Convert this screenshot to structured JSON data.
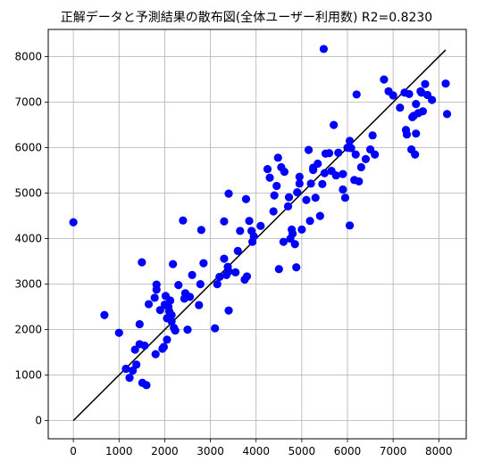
{
  "chart_data": {
    "type": "scatter",
    "title": "正解データと予測結果の散布図(全体ユーザー利用数)  R2=0.8230",
    "xlim": [
      -550,
      8600
    ],
    "ylim": [
      -400,
      8600
    ],
    "xticks": [
      0,
      1000,
      2000,
      3000,
      4000,
      5000,
      6000,
      7000,
      8000
    ],
    "yticks": [
      0,
      1000,
      2000,
      3000,
      4000,
      5000,
      6000,
      7000,
      8000
    ],
    "grid": true,
    "colors": {
      "points": "#0000ff",
      "line": "#000000",
      "grid": "#b0b0b0"
    },
    "reference_line": {
      "x": [
        0,
        8150
      ],
      "y": [
        0,
        8150
      ]
    },
    "points": [
      [
        0,
        4360
      ],
      [
        680,
        2320
      ],
      [
        1000,
        1930
      ],
      [
        1150,
        1140
      ],
      [
        1230,
        940
      ],
      [
        1300,
        1100
      ],
      [
        1350,
        1560
      ],
      [
        1380,
        1230
      ],
      [
        1450,
        2120
      ],
      [
        1450,
        1680
      ],
      [
        1500,
        3480
      ],
      [
        1510,
        830
      ],
      [
        1560,
        1650
      ],
      [
        1600,
        780
      ],
      [
        1650,
        2560
      ],
      [
        1780,
        2700
      ],
      [
        1800,
        1460
      ],
      [
        1820,
        2880
      ],
      [
        1820,
        2990
      ],
      [
        1900,
        2430
      ],
      [
        1950,
        1580
      ],
      [
        1980,
        1620
      ],
      [
        2000,
        2550
      ],
      [
        2020,
        2740
      ],
      [
        2050,
        2250
      ],
      [
        2050,
        1780
      ],
      [
        2080,
        2500
      ],
      [
        2100,
        2400
      ],
      [
        2120,
        2640
      ],
      [
        2150,
        2320
      ],
      [
        2150,
        2180
      ],
      [
        2180,
        3440
      ],
      [
        2200,
        2040
      ],
      [
        2230,
        1980
      ],
      [
        2300,
        2980
      ],
      [
        2400,
        4400
      ],
      [
        2430,
        2680
      ],
      [
        2450,
        2800
      ],
      [
        2500,
        2000
      ],
      [
        2550,
        2720
      ],
      [
        2600,
        3200
      ],
      [
        2750,
        2540
      ],
      [
        2780,
        3000
      ],
      [
        2800,
        4190
      ],
      [
        2850,
        3460
      ],
      [
        3100,
        2030
      ],
      [
        3150,
        3000
      ],
      [
        3200,
        3160
      ],
      [
        3300,
        3560
      ],
      [
        3300,
        4380
      ],
      [
        3350,
        3200
      ],
      [
        3380,
        3380
      ],
      [
        3400,
        2420
      ],
      [
        3400,
        3280
      ],
      [
        3400,
        4990
      ],
      [
        3550,
        3260
      ],
      [
        3600,
        3730
      ],
      [
        3650,
        4170
      ],
      [
        3750,
        3100
      ],
      [
        3780,
        4870
      ],
      [
        3800,
        3170
      ],
      [
        3850,
        4390
      ],
      [
        3900,
        4170
      ],
      [
        3920,
        3930
      ],
      [
        3950,
        4050
      ],
      [
        4100,
        4280
      ],
      [
        4250,
        5530
      ],
      [
        4300,
        5340
      ],
      [
        4380,
        4600
      ],
      [
        4400,
        4950
      ],
      [
        4450,
        5160
      ],
      [
        4480,
        5780
      ],
      [
        4500,
        3330
      ],
      [
        4550,
        5570
      ],
      [
        4600,
        3930
      ],
      [
        4620,
        5470
      ],
      [
        4700,
        4710
      ],
      [
        4720,
        4910
      ],
      [
        4750,
        4000
      ],
      [
        4780,
        4200
      ],
      [
        4800,
        4110
      ],
      [
        4850,
        3880
      ],
      [
        4880,
        3370
      ],
      [
        4900,
        5020
      ],
      [
        4950,
        5360
      ],
      [
        4950,
        5210
      ],
      [
        5000,
        4200
      ],
      [
        5100,
        4850
      ],
      [
        5150,
        5950
      ],
      [
        5180,
        4390
      ],
      [
        5200,
        5210
      ],
      [
        5250,
        5510
      ],
      [
        5250,
        5560
      ],
      [
        5300,
        4900
      ],
      [
        5350,
        5650
      ],
      [
        5400,
        4500
      ],
      [
        5450,
        5200
      ],
      [
        5480,
        8170
      ],
      [
        5500,
        5440
      ],
      [
        5520,
        5870
      ],
      [
        5600,
        5880
      ],
      [
        5650,
        5490
      ],
      [
        5700,
        6500
      ],
      [
        5750,
        5390
      ],
      [
        5800,
        5890
      ],
      [
        5900,
        5420
      ],
      [
        5900,
        5080
      ],
      [
        5950,
        4900
      ],
      [
        6000,
        6000
      ],
      [
        6050,
        6150
      ],
      [
        6050,
        4290
      ],
      [
        6080,
        5990
      ],
      [
        6150,
        5290
      ],
      [
        6180,
        5850
      ],
      [
        6200,
        7170
      ],
      [
        6250,
        5260
      ],
      [
        6300,
        5570
      ],
      [
        6400,
        5750
      ],
      [
        6500,
        5960
      ],
      [
        6550,
        6270
      ],
      [
        6600,
        5850
      ],
      [
        6800,
        7500
      ],
      [
        6900,
        7240
      ],
      [
        7000,
        7150
      ],
      [
        7150,
        6880
      ],
      [
        7250,
        7210
      ],
      [
        7280,
        6390
      ],
      [
        7300,
        6290
      ],
      [
        7350,
        7180
      ],
      [
        7400,
        5960
      ],
      [
        7420,
        6670
      ],
      [
        7450,
        6700
      ],
      [
        7480,
        5850
      ],
      [
        7500,
        6310
      ],
      [
        7500,
        6960
      ],
      [
        7550,
        6760
      ],
      [
        7600,
        7240
      ],
      [
        7620,
        7210
      ],
      [
        7650,
        6800
      ],
      [
        7700,
        7400
      ],
      [
        7750,
        7160
      ],
      [
        7850,
        7050
      ],
      [
        8150,
        7410
      ],
      [
        8180,
        6740
      ]
    ]
  }
}
